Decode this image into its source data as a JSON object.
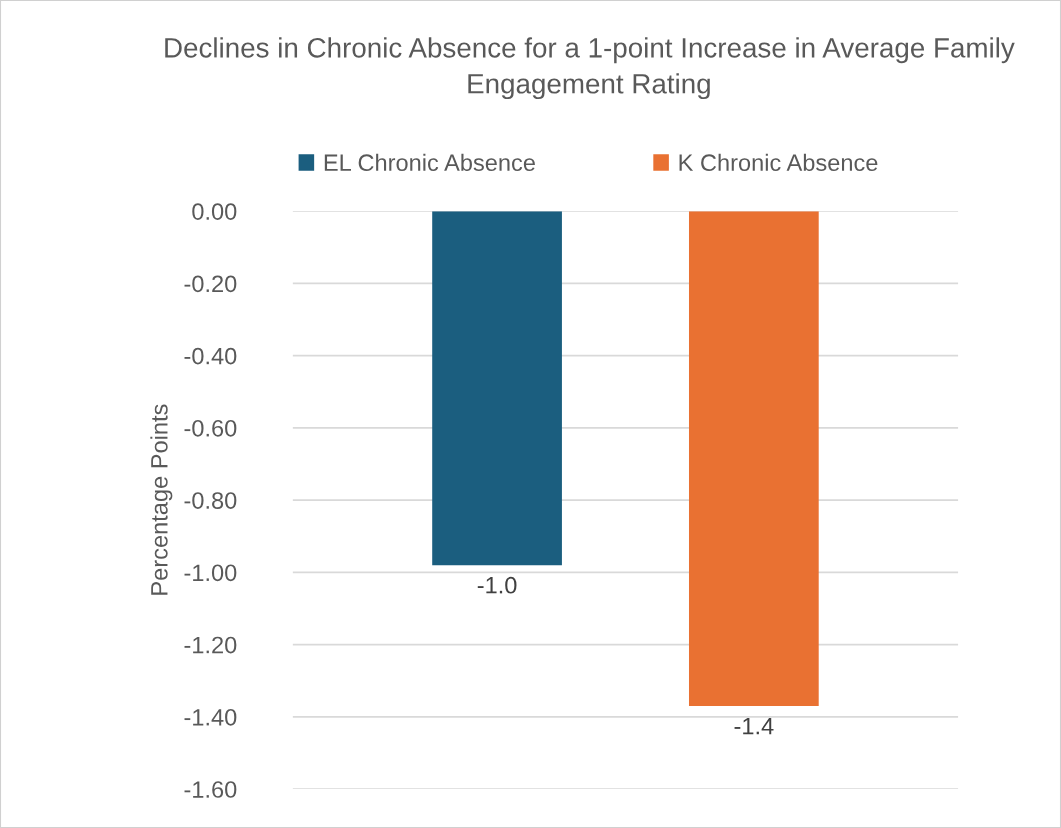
{
  "chart_data": {
    "type": "bar",
    "title": "Declines in Chronic Absence for a 1-point Increase in Average Family Engagement Rating",
    "ylabel": "Percentage Points",
    "categories": [
      null
    ],
    "series": [
      {
        "name": "EL Chronic Absence",
        "color": "#1b5e7f",
        "values": [
          -0.98
        ],
        "value_labels": [
          "-1.0"
        ]
      },
      {
        "name": "K Chronic Absence",
        "color": "#e97132",
        "values": [
          -1.37
        ],
        "value_labels": [
          "-1.4"
        ]
      }
    ],
    "ylim": [
      -1.6,
      0
    ],
    "yticks": [
      {
        "value": 0,
        "label": "0.00"
      },
      {
        "value": -0.2,
        "label": "-0.20"
      },
      {
        "value": -0.4,
        "label": "-0.40"
      },
      {
        "value": -0.6,
        "label": "-0.60"
      },
      {
        "value": -0.8,
        "label": "-0.80"
      },
      {
        "value": -1.0,
        "label": "-1.00"
      },
      {
        "value": -1.2,
        "label": "-1.20"
      },
      {
        "value": -1.4,
        "label": "-1.40"
      },
      {
        "value": -1.6,
        "label": "-1.60"
      }
    ],
    "grid": "y",
    "legend": "top"
  }
}
